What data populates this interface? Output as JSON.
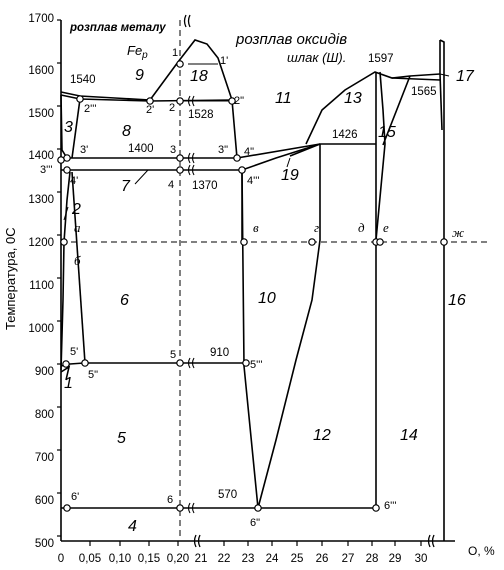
{
  "diagram": {
    "y_axis": {
      "title": "Температура, 0С",
      "ticks": [
        500,
        600,
        700,
        800,
        900,
        1000,
        1100,
        1200,
        1300,
        1400,
        1500,
        1600,
        1700
      ]
    },
    "x_axis": {
      "title": "O, %",
      "ticks": [
        "0",
        "0,05",
        "0,10",
        "0,15",
        "0,20",
        "21",
        "22",
        "23",
        "24",
        "25",
        "26",
        "27",
        "28",
        "29",
        "30"
      ]
    },
    "region_labels": {
      "melt_metal": "розплав металу",
      "melt_oxides": "розплав оксидів",
      "slag": "шлак (Ш)."
    },
    "temperatures": {
      "t1540": "1540",
      "t1528": "1528",
      "t1400": "1400",
      "t1370": "1370",
      "t1426": "1426",
      "t1597": "1597",
      "t1565": "1565",
      "t910": "910",
      "t570": "570"
    },
    "phase_numbers": [
      "1",
      "2",
      "3",
      "4",
      "5",
      "6",
      "7",
      "8",
      "9",
      "10",
      "11",
      "12",
      "13",
      "14",
      "15",
      "16",
      "17",
      "18",
      "19"
    ],
    "fe_label": "Fe",
    "fe_sub": "р",
    "point_labels": {
      "p1": "1",
      "p1p": "1'",
      "p2": "2",
      "p2p": "2'",
      "p2pp": "2\"",
      "p2ppp": "2'''",
      "p3": "3",
      "p3p": "3'",
      "p3pp": "3\"",
      "p3ppp": "3'''",
      "p4": "4",
      "p4p": "4'",
      "p4pp": "4\"",
      "p4ppp": "4'''",
      "p5": "5",
      "p5p": "5'",
      "p5pp": "5\"",
      "p5ppp": "5'''",
      "p6": "6",
      "p6p": "6'",
      "p6pp": "6\"",
      "p6ppp": "6'''",
      "a": "а",
      "b": "б",
      "v": "в",
      "g": "г",
      "d": "д",
      "e": "е",
      "zh": "ж",
      "a2": "2"
    }
  }
}
